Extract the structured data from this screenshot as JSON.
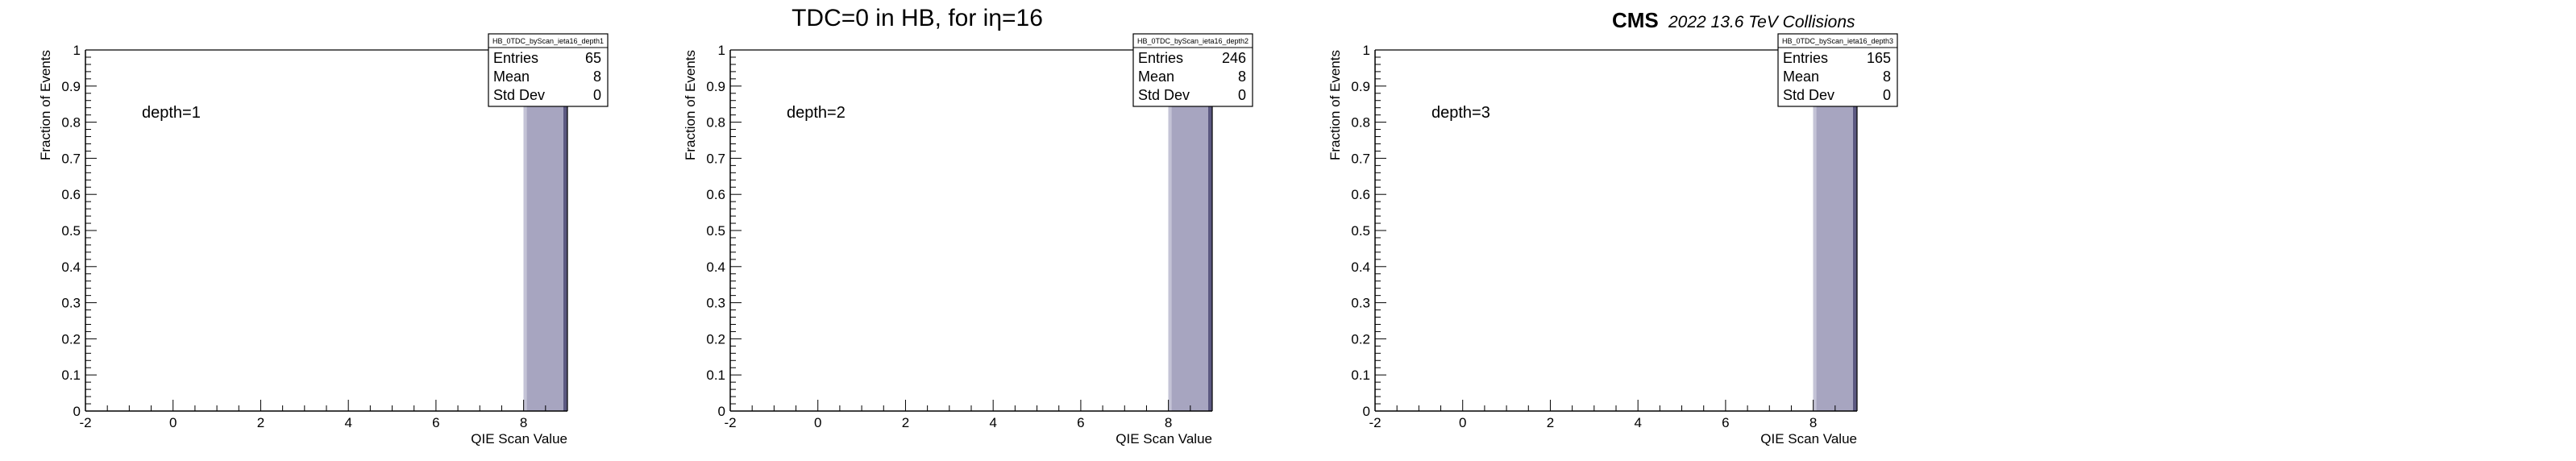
{
  "page": {
    "title": "TDC=0 in HB, for iη=16",
    "cms_label": "CMS",
    "cms_sublabel": "2022 13.6 TeV Collisions"
  },
  "chart_data": [
    {
      "type": "bar",
      "histogram_name": "HB_0TDC_byScan_ieta16_depth1",
      "annotation": "depth=1",
      "xlabel": "QIE Scan Value",
      "ylabel": "Fraction of Events",
      "xlim": [
        -2,
        9
      ],
      "ylim": [
        0,
        1
      ],
      "xticks": [
        -2,
        0,
        2,
        4,
        6,
        8
      ],
      "yticks": [
        0,
        0.1,
        0.2,
        0.3,
        0.4,
        0.5,
        0.6,
        0.7,
        0.8,
        0.9,
        1
      ],
      "bins": [
        {
          "x_low": 8,
          "x_high": 9,
          "value": 1.0
        }
      ],
      "bar_color": "#a7a5c0",
      "stats": {
        "entries": 65,
        "mean": 8,
        "std_dev": 0
      },
      "stats_labels": {
        "entries": "Entries",
        "mean": "Mean",
        "std_dev": "Std Dev"
      },
      "grid": false
    },
    {
      "type": "bar",
      "histogram_name": "HB_0TDC_byScan_ieta16_depth2",
      "annotation": "depth=2",
      "xlabel": "QIE Scan Value",
      "ylabel": "Fraction of Events",
      "xlim": [
        -2,
        9
      ],
      "ylim": [
        0,
        1
      ],
      "xticks": [
        -2,
        0,
        2,
        4,
        6,
        8
      ],
      "yticks": [
        0,
        0.1,
        0.2,
        0.3,
        0.4,
        0.5,
        0.6,
        0.7,
        0.8,
        0.9,
        1
      ],
      "bins": [
        {
          "x_low": 8,
          "x_high": 9,
          "value": 1.0
        }
      ],
      "bar_color": "#a7a5c0",
      "stats": {
        "entries": 246,
        "mean": 8,
        "std_dev": 0
      },
      "stats_labels": {
        "entries": "Entries",
        "mean": "Mean",
        "std_dev": "Std Dev"
      },
      "grid": false
    },
    {
      "type": "bar",
      "histogram_name": "HB_0TDC_byScan_ieta16_depth3",
      "annotation": "depth=3",
      "xlabel": "QIE Scan Value",
      "ylabel": "Fraction of Events",
      "xlim": [
        -2,
        9
      ],
      "ylim": [
        0,
        1
      ],
      "xticks": [
        -2,
        0,
        2,
        4,
        6,
        8
      ],
      "yticks": [
        0,
        0.1,
        0.2,
        0.3,
        0.4,
        0.5,
        0.6,
        0.7,
        0.8,
        0.9,
        1
      ],
      "bins": [
        {
          "x_low": 8,
          "x_high": 9,
          "value": 1.0
        }
      ],
      "bar_color": "#a7a5c0",
      "stats": {
        "entries": 165,
        "mean": 8,
        "std_dev": 0
      },
      "stats_labels": {
        "entries": "Entries",
        "mean": "Mean",
        "std_dev": "Std Dev"
      },
      "grid": false
    }
  ]
}
